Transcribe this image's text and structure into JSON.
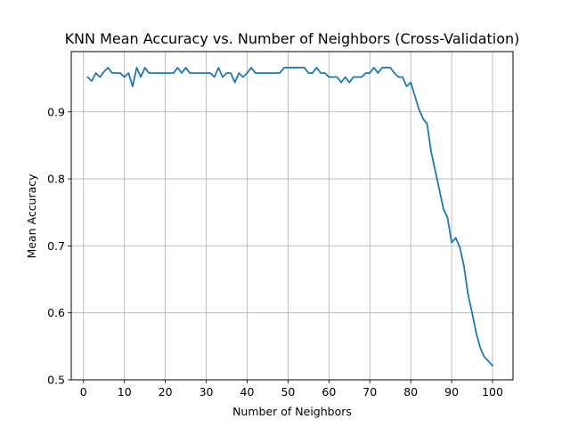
{
  "chart_data": {
    "type": "line",
    "title": "KNN Mean Accuracy vs. Number of Neighbors (Cross-Validation)",
    "xlabel": "Number of Neighbors",
    "ylabel": "Mean Accuracy",
    "xlim": [
      -3,
      105
    ],
    "ylim": [
      0.5,
      0.99
    ],
    "xticks": [
      0,
      10,
      20,
      30,
      40,
      50,
      60,
      70,
      80,
      90,
      100
    ],
    "yticks": [
      0.5,
      0.6,
      0.7,
      0.8,
      0.9
    ],
    "grid": true,
    "line_color": "#1f77b4",
    "series": [
      {
        "x": [
          1,
          2,
          3,
          4,
          5,
          6,
          7,
          8,
          9,
          10,
          11,
          12,
          13,
          14,
          15,
          16,
          17,
          18,
          19,
          20,
          21,
          22,
          23,
          24,
          25,
          26,
          27,
          28,
          29,
          30,
          31,
          32,
          33,
          34,
          35,
          36,
          37,
          38,
          39,
          40,
          41,
          42,
          43,
          44,
          45,
          46,
          47,
          48,
          49,
          50,
          51,
          52,
          53,
          54,
          55,
          56,
          57,
          58,
          59,
          60,
          61,
          62,
          63,
          64,
          65,
          66,
          67,
          68,
          69,
          70,
          71,
          72,
          73,
          74,
          75,
          76,
          77,
          78,
          79,
          80,
          81,
          82,
          83,
          84,
          85,
          86,
          87,
          88,
          89,
          90,
          91,
          92,
          93,
          94,
          95,
          96,
          97,
          98,
          99,
          100
        ],
        "y": [
          0.952,
          0.946,
          0.958,
          0.952,
          0.96,
          0.966,
          0.958,
          0.958,
          0.958,
          0.952,
          0.958,
          0.938,
          0.966,
          0.952,
          0.966,
          0.958,
          0.958,
          0.958,
          0.958,
          0.958,
          0.958,
          0.958,
          0.966,
          0.958,
          0.966,
          0.958,
          0.958,
          0.958,
          0.958,
          0.958,
          0.958,
          0.952,
          0.966,
          0.952,
          0.958,
          0.958,
          0.944,
          0.958,
          0.952,
          0.958,
          0.966,
          0.958,
          0.958,
          0.958,
          0.958,
          0.958,
          0.958,
          0.958,
          0.966,
          0.966,
          0.966,
          0.966,
          0.966,
          0.966,
          0.958,
          0.958,
          0.966,
          0.958,
          0.958,
          0.952,
          0.952,
          0.952,
          0.944,
          0.952,
          0.944,
          0.952,
          0.952,
          0.952,
          0.958,
          0.958,
          0.966,
          0.958,
          0.966,
          0.966,
          0.966,
          0.958,
          0.952,
          0.952,
          0.938,
          0.944,
          0.924,
          0.904,
          0.89,
          0.882,
          0.84,
          0.812,
          0.784,
          0.755,
          0.742,
          0.705,
          0.712,
          0.698,
          0.67,
          0.628,
          0.6,
          0.57,
          0.548,
          0.534,
          0.528,
          0.521
        ]
      }
    ]
  }
}
